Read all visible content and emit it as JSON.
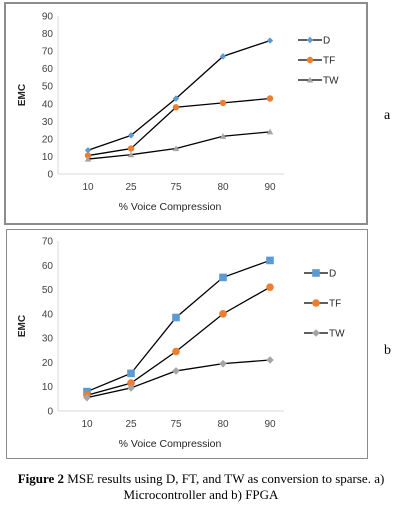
{
  "panels": [
    {
      "letter": "a",
      "chart_data": {
        "type": "line",
        "categories": [
          "10",
          "25",
          "75",
          "80",
          "90"
        ],
        "xlabel": "% Voice Compression",
        "ylabel": "EMC",
        "ylim": [
          0,
          90
        ],
        "yticks": [
          "0",
          "10",
          "20",
          "30",
          "40",
          "50",
          "60",
          "70",
          "80",
          "90"
        ],
        "series": [
          {
            "name": "D",
            "values": [
              13.5,
              22,
              43,
              67,
              76
            ],
            "color": "#5b9bd5",
            "marker": "diamond"
          },
          {
            "name": "TF",
            "values": [
              10.5,
              14.5,
              38,
              40.5,
              43
            ],
            "color": "#ed7d31",
            "marker": "circle"
          },
          {
            "name": "TW",
            "values": [
              8.5,
              11,
              14.5,
              21.5,
              24
            ],
            "color": "#a5a5a5",
            "marker": "triangle"
          }
        ],
        "legend": "right"
      }
    },
    {
      "letter": "b",
      "chart_data": {
        "type": "line",
        "categories": [
          "10",
          "25",
          "75",
          "80",
          "90"
        ],
        "xlabel": "% Voice Compression",
        "ylabel": "EMC",
        "ylim": [
          0,
          70
        ],
        "yticks": [
          "0",
          "10",
          "20",
          "30",
          "40",
          "50",
          "60",
          "70"
        ],
        "series": [
          {
            "name": "D",
            "values": [
              8,
              15.5,
              38.5,
              55,
              62
            ],
            "color": "#5b9bd5",
            "marker": "square"
          },
          {
            "name": "TF",
            "values": [
              6.5,
              11.5,
              24.5,
              40,
              51
            ],
            "color": "#ed7d31",
            "marker": "circle"
          },
          {
            "name": "TW",
            "values": [
              5.5,
              9.5,
              16.5,
              19.5,
              21
            ],
            "color": "#a5a5a5",
            "marker": "diamond"
          }
        ],
        "legend": "right"
      }
    }
  ],
  "caption": {
    "label": "Figure 2",
    "text": " MSE results using D, FT, and TW as conversion to sparse. a) Microcontroller and b) FPGA"
  }
}
